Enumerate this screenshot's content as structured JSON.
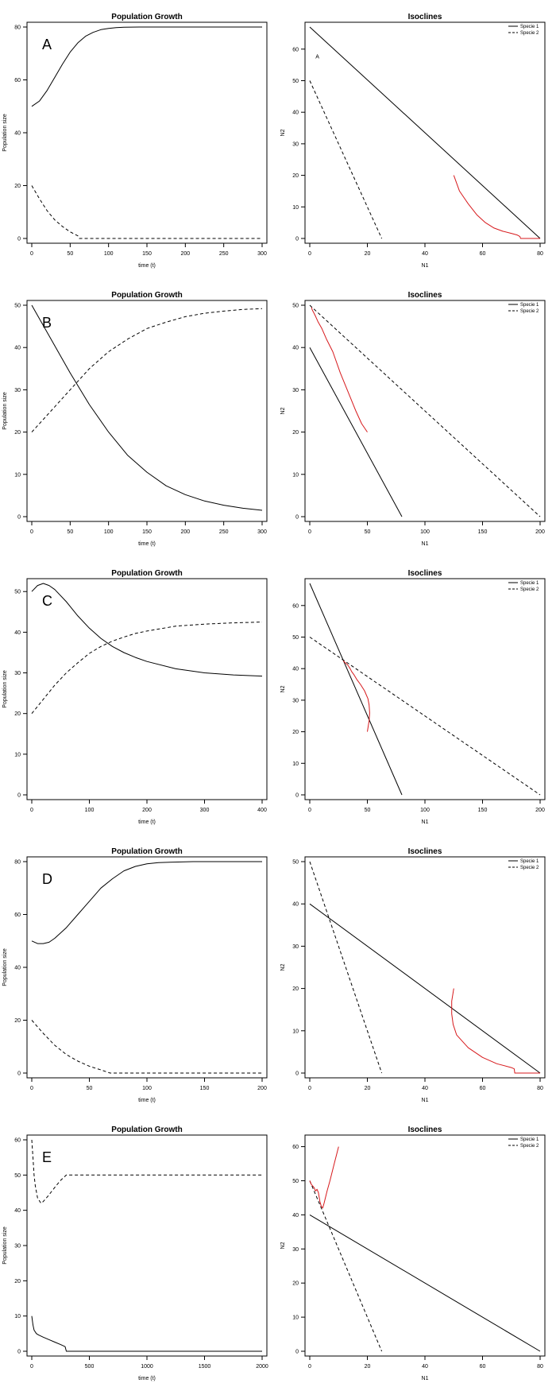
{
  "chart_data": [
    {
      "panel": "A",
      "type": "line",
      "title": "Population Growth",
      "xlabel": "time (t)",
      "ylabel": "Population size",
      "xlim": [
        0,
        300
      ],
      "ylim": [
        0,
        80
      ],
      "xticks": [
        0,
        50,
        100,
        150,
        200,
        250,
        300
      ],
      "yticks": [
        0,
        20,
        40,
        60,
        80
      ],
      "series": [
        {
          "name": "Species 1",
          "style": "solid",
          "x": [
            0,
            10,
            20,
            30,
            40,
            50,
            60,
            70,
            80,
            90,
            100,
            110,
            120,
            140,
            160,
            200,
            250,
            300
          ],
          "y": [
            50,
            52,
            56,
            61,
            66,
            70.5,
            74,
            76.5,
            78,
            79,
            79.5,
            79.8,
            79.9,
            80,
            80,
            80,
            80,
            80
          ]
        },
        {
          "name": "Species 2",
          "style": "dashed",
          "x": [
            0,
            5,
            10,
            20,
            30,
            40,
            50,
            60,
            62,
            80,
            100,
            150,
            200,
            250,
            300
          ],
          "y": [
            20,
            17.5,
            15,
            10.5,
            7,
            4.5,
            2.5,
            1,
            0,
            0,
            0,
            0,
            0,
            0,
            0
          ]
        }
      ]
    },
    {
      "panel": "A",
      "type": "line",
      "title": "Isoclines",
      "xlabel": "N1",
      "ylabel": "N2",
      "xlim": [
        0,
        80
      ],
      "ylim": [
        0,
        67
      ],
      "xticks": [
        0,
        20,
        40,
        60,
        80
      ],
      "yticks": [
        0,
        10,
        20,
        30,
        40,
        50,
        60
      ],
      "legend": [
        "Specie 1",
        "Specie 2"
      ],
      "legend_position": "top-right",
      "annotation": {
        "text": "A",
        "x": 2,
        "y": 57
      },
      "series": [
        {
          "name": "Specie 1",
          "style": "solid",
          "x": [
            0,
            80
          ],
          "y": [
            67,
            0
          ]
        },
        {
          "name": "Specie 2",
          "style": "dashed",
          "x": [
            0,
            25
          ],
          "y": [
            50,
            0
          ]
        },
        {
          "name": "trajectory",
          "style": "red",
          "x": [
            50,
            52,
            55,
            58,
            61,
            64,
            67,
            70,
            72,
            73,
            73.2,
            80
          ],
          "y": [
            20,
            15,
            11,
            7.5,
            5,
            3.3,
            2.3,
            1.6,
            1.1,
            0.6,
            0,
            0
          ]
        }
      ]
    },
    {
      "panel": "B",
      "type": "line",
      "title": "Population Growth",
      "xlabel": "time (t)",
      "ylabel": "Population size",
      "xlim": [
        0,
        300
      ],
      "ylim": [
        0,
        50
      ],
      "xticks": [
        0,
        50,
        100,
        150,
        200,
        250,
        300
      ],
      "yticks": [
        0,
        10,
        20,
        30,
        40,
        50
      ],
      "series": [
        {
          "name": "Species 1",
          "style": "solid",
          "x": [
            0,
            25,
            50,
            75,
            100,
            125,
            150,
            175,
            200,
            225,
            250,
            275,
            300
          ],
          "y": [
            50,
            42,
            34,
            26.5,
            20,
            14.5,
            10.5,
            7.3,
            5.2,
            3.7,
            2.7,
            2,
            1.5
          ]
        },
        {
          "name": "Species 2",
          "style": "dashed",
          "x": [
            0,
            25,
            50,
            75,
            100,
            125,
            150,
            175,
            200,
            225,
            250,
            275,
            300
          ],
          "y": [
            20,
            25,
            30,
            35,
            39,
            42,
            44.5,
            46,
            47.3,
            48.1,
            48.6,
            49,
            49.2
          ]
        }
      ]
    },
    {
      "panel": "B",
      "type": "line",
      "title": "Isoclines",
      "xlabel": "N1",
      "ylabel": "N2",
      "xlim": [
        0,
        200
      ],
      "ylim": [
        0,
        50
      ],
      "xticks": [
        0,
        50,
        100,
        150,
        200
      ],
      "yticks": [
        0,
        10,
        20,
        30,
        40,
        50
      ],
      "legend": [
        "Specie 1",
        "Specie 2"
      ],
      "legend_position": "top-right",
      "series": [
        {
          "name": "Specie 1",
          "style": "solid",
          "x": [
            0,
            80
          ],
          "y": [
            40,
            0
          ]
        },
        {
          "name": "Specie 2",
          "style": "dashed",
          "x": [
            0,
            200
          ],
          "y": [
            50,
            0
          ]
        },
        {
          "name": "trajectory",
          "style": "red",
          "x": [
            50,
            45,
            40,
            34,
            26.5,
            20,
            14.5,
            10.5,
            7.3,
            5.2,
            3.7,
            2.7,
            2,
            1.5
          ],
          "y": [
            20,
            22,
            25,
            29,
            34,
            39,
            42,
            44.5,
            46,
            47.3,
            48.1,
            48.6,
            49,
            49.5
          ]
        }
      ]
    },
    {
      "panel": "C",
      "type": "line",
      "title": "Population Growth",
      "xlabel": "time (t)",
      "ylabel": "Population size",
      "xlim": [
        0,
        400
      ],
      "ylim": [
        0,
        52
      ],
      "xticks": [
        0,
        100,
        200,
        300,
        400
      ],
      "yticks": [
        0,
        10,
        20,
        30,
        40,
        50
      ],
      "series": [
        {
          "name": "Species 1",
          "style": "solid",
          "x": [
            0,
            10,
            20,
            30,
            40,
            60,
            80,
            100,
            120,
            140,
            160,
            180,
            200,
            250,
            300,
            350,
            400
          ],
          "y": [
            50,
            51.5,
            52,
            51.5,
            50.5,
            47.5,
            44,
            41,
            38.5,
            36.5,
            35,
            33.8,
            32.8,
            31,
            30,
            29.5,
            29.2
          ]
        },
        {
          "name": "Species 2",
          "style": "dashed",
          "x": [
            0,
            20,
            40,
            60,
            80,
            100,
            120,
            140,
            160,
            180,
            200,
            250,
            300,
            350,
            400
          ],
          "y": [
            20,
            23.5,
            27,
            30,
            32.5,
            34.8,
            36.5,
            37.8,
            38.8,
            39.7,
            40.3,
            41.5,
            42,
            42.3,
            42.5
          ]
        }
      ]
    },
    {
      "panel": "C",
      "type": "line",
      "title": "Isoclines",
      "xlabel": "N1",
      "ylabel": "N2",
      "xlim": [
        0,
        200
      ],
      "ylim": [
        0,
        67
      ],
      "xticks": [
        0,
        50,
        100,
        150,
        200
      ],
      "yticks": [
        0,
        10,
        20,
        30,
        40,
        50,
        60
      ],
      "legend": [
        "Specie 1",
        "Specie 2"
      ],
      "legend_position": "top-right",
      "series": [
        {
          "name": "Specie 1",
          "style": "solid",
          "x": [
            0,
            80
          ],
          "y": [
            67,
            0
          ]
        },
        {
          "name": "Specie 2",
          "style": "dashed",
          "x": [
            0,
            200
          ],
          "y": [
            50,
            0
          ]
        },
        {
          "name": "trajectory",
          "style": "red",
          "x": [
            50,
            51.5,
            52,
            51.5,
            50.5,
            47.5,
            44,
            41,
            38.5,
            36.5,
            35,
            33.8,
            32.8,
            31,
            30,
            29.5,
            29.2
          ],
          "y": [
            20,
            23.5,
            26,
            28.5,
            30.5,
            33,
            35,
            36.5,
            38,
            39,
            40,
            40.7,
            41.2,
            41.8,
            42.1,
            42.3,
            42.5
          ]
        }
      ]
    },
    {
      "panel": "D",
      "type": "line",
      "title": "Population Growth",
      "xlabel": "time (t)",
      "ylabel": "Population size",
      "xlim": [
        0,
        200
      ],
      "ylim": [
        0,
        80
      ],
      "xticks": [
        0,
        50,
        100,
        150,
        200
      ],
      "yticks": [
        0,
        20,
        40,
        60,
        80
      ],
      "series": [
        {
          "name": "Species 1",
          "style": "solid",
          "x": [
            0,
            5,
            10,
            15,
            20,
            30,
            40,
            50,
            60,
            70,
            80,
            90,
            100,
            110,
            120,
            140,
            160,
            180,
            200
          ],
          "y": [
            50,
            49,
            49,
            49.5,
            51,
            55,
            60,
            65,
            70,
            73.5,
            76.5,
            78.2,
            79.2,
            79.6,
            79.8,
            80,
            80,
            80,
            80
          ]
        },
        {
          "name": "Species 2",
          "style": "dashed",
          "x": [
            0,
            10,
            20,
            30,
            40,
            50,
            60,
            68,
            80,
            100,
            150,
            200
          ],
          "y": [
            20,
            15,
            10.5,
            7,
            4.5,
            2.6,
            1.2,
            0,
            0,
            0,
            0,
            0
          ]
        }
      ]
    },
    {
      "panel": "D",
      "type": "line",
      "title": "Isoclines",
      "xlabel": "N1",
      "ylabel": "N2",
      "xlim": [
        0,
        80
      ],
      "ylim": [
        0,
        50
      ],
      "xticks": [
        0,
        20,
        40,
        60,
        80
      ],
      "yticks": [
        0,
        10,
        20,
        30,
        40,
        50
      ],
      "legend": [
        "Specie 1",
        "Specie 2"
      ],
      "legend_position": "top-right",
      "series": [
        {
          "name": "Specie 1",
          "style": "solid",
          "x": [
            0,
            80
          ],
          "y": [
            40,
            0
          ]
        },
        {
          "name": "Specie 2",
          "style": "dashed",
          "x": [
            0,
            25
          ],
          "y": [
            50,
            0
          ]
        },
        {
          "name": "trajectory",
          "style": "red",
          "x": [
            50,
            49.3,
            49.3,
            49.8,
            51,
            55,
            60,
            65,
            70,
            71,
            71.2,
            80
          ],
          "y": [
            20,
            17,
            14,
            11.5,
            9,
            6,
            3.7,
            2.2,
            1.3,
            1,
            0,
            0
          ]
        }
      ]
    },
    {
      "panel": "E",
      "type": "line",
      "title": "Population Growth",
      "xlabel": "time (t)",
      "ylabel": "Population size",
      "xlim": [
        0,
        2000
      ],
      "ylim": [
        0,
        60
      ],
      "xticks": [
        0,
        500,
        1000,
        1500,
        2000
      ],
      "yticks": [
        0,
        10,
        20,
        30,
        40,
        50,
        60
      ],
      "series": [
        {
          "name": "Species 1",
          "style": "solid",
          "x": [
            0,
            10,
            20,
            40,
            60,
            100,
            150,
            200,
            250,
            290,
            300,
            400,
            1000,
            1500,
            2000
          ],
          "y": [
            10,
            7.5,
            6,
            5,
            4.6,
            4,
            3.3,
            2.6,
            1.9,
            1.3,
            0,
            0,
            0,
            0,
            0
          ]
        },
        {
          "name": "Species 2",
          "style": "dashed",
          "x": [
            0,
            10,
            20,
            30,
            50,
            80,
            100,
            140,
            200,
            250,
            300,
            400,
            1000,
            1500,
            2000
          ],
          "y": [
            60,
            55,
            50,
            47,
            43.5,
            42,
            42.5,
            44,
            46.5,
            48.5,
            50,
            50,
            50,
            50,
            50
          ]
        }
      ]
    },
    {
      "panel": "E",
      "type": "line",
      "title": "Isoclines",
      "xlabel": "N1",
      "ylabel": "N2",
      "xlim": [
        0,
        80
      ],
      "ylim": [
        0,
        62
      ],
      "xticks": [
        0,
        20,
        40,
        60,
        80
      ],
      "yticks": [
        0,
        10,
        20,
        30,
        40,
        50,
        60
      ],
      "legend": [
        "Specie 1",
        "Specie 2"
      ],
      "legend_position": "top-right",
      "series": [
        {
          "name": "Specie 1",
          "style": "solid",
          "x": [
            0,
            80
          ],
          "y": [
            40,
            0
          ]
        },
        {
          "name": "Specie 2",
          "style": "dashed",
          "x": [
            0,
            25
          ],
          "y": [
            50,
            0
          ]
        },
        {
          "name": "trajectory",
          "style": "red",
          "x": [
            10,
            8.5,
            7,
            6,
            5,
            4.5,
            4,
            3.5,
            3,
            2.5,
            2,
            1.5,
            1,
            0.5,
            0
          ],
          "y": [
            60,
            55,
            50,
            47,
            43.5,
            42,
            42.5,
            44,
            46.5,
            47.5,
            47,
            48,
            48.5,
            49,
            50
          ]
        }
      ]
    }
  ]
}
